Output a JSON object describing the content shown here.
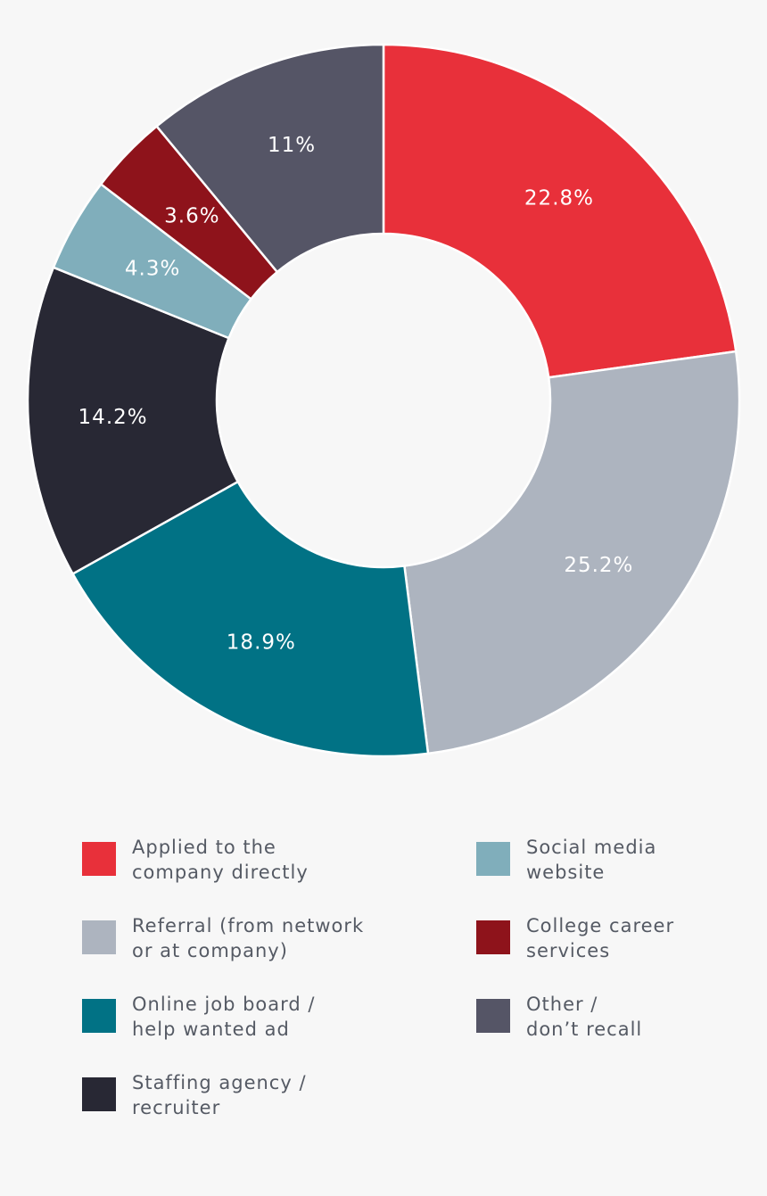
{
  "chart_data": {
    "type": "pie",
    "variant": "donut",
    "slices": [
      {
        "label": "22.8%",
        "value": 22.8,
        "color": "#e8303a",
        "legend": [
          "Applied to the",
          "company directly"
        ]
      },
      {
        "label": "25.2%",
        "value": 25.2,
        "color": "#adb4bf",
        "legend": [
          "Referral (from network",
          "or at company)"
        ]
      },
      {
        "label": "18.9%",
        "value": 18.9,
        "color": "#017285",
        "legend": [
          "Online job board /",
          "help wanted ad"
        ]
      },
      {
        "label": "14.2%",
        "value": 14.2,
        "color": "#282834",
        "legend": [
          "Staffing agency /",
          "recruiter"
        ]
      },
      {
        "label": "4.3%",
        "value": 4.3,
        "color": "#80aebb",
        "legend": [
          "Social media",
          "website"
        ]
      },
      {
        "label": "3.6%",
        "value": 3.6,
        "color": "#8e131b",
        "legend": [
          "College career",
          "services"
        ]
      },
      {
        "label": "11%",
        "value": 11,
        "color": "#555566",
        "legend": [
          "Other /",
          "don’t recall"
        ]
      }
    ],
    "legend_placement": "bottom"
  }
}
